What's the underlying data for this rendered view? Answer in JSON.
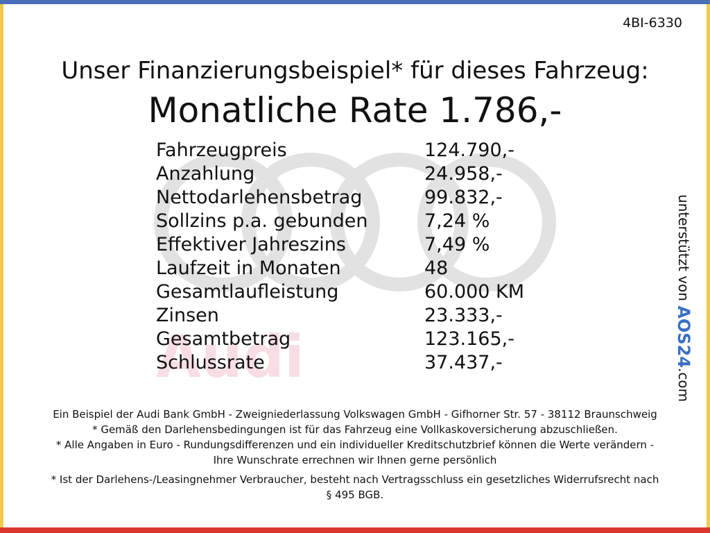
{
  "code": "4BI-6330",
  "title": "Unser Finanzierungsbeispiel* für dieses Fahrzeug:",
  "headline": "Monatliche Rate 1.786,-",
  "table": {
    "rows": [
      [
        "Fahrzeugpreis",
        "124.790,-"
      ],
      [
        "Anzahlung",
        "24.958,-"
      ],
      [
        "Nettodarlehensbetrag",
        "99.832,-"
      ],
      [
        "Sollzins p.a. gebunden",
        "7,24 %"
      ],
      [
        "Effektiver Jahreszins",
        "7,49 %"
      ],
      [
        "Laufzeit in Monaten",
        "48"
      ],
      [
        "Gesamtlaufleistung",
        "60.000 KM"
      ],
      [
        "Zinsen",
        "23.333,-"
      ],
      [
        "Gesamtbetrag",
        "123.165,-"
      ],
      [
        "Schlussrate",
        "37.437,-"
      ]
    ]
  },
  "footnotes": [
    "Ein Beispiel der Audi Bank GmbH - Zweigniederlassung Volkswagen GmbH - Gifhorner Str. 57 - 38112 Braunschweig",
    "* Gemäß den Darlehensbedingungen ist für das Fahrzeug eine Vollkaskoversicherung abzuschließen.",
    "* Alle Angaben in Euro - Rundungsdifferenzen und ein individueller Kreditschutzbrief können die Werte verändern - Ihre Wunschrate errechnen wir Ihnen gerne persönlich",
    "* Ist der Darlehens-/Leasingnehmer Verbraucher, besteht nach Vertragsschluss ein gesetzliches Widerrufsrecht nach § 495 BGB."
  ],
  "watermark": "Audi",
  "sponsor": {
    "text": "unterstützt von",
    "logo": "AOS24",
    "suffix": ".com"
  }
}
